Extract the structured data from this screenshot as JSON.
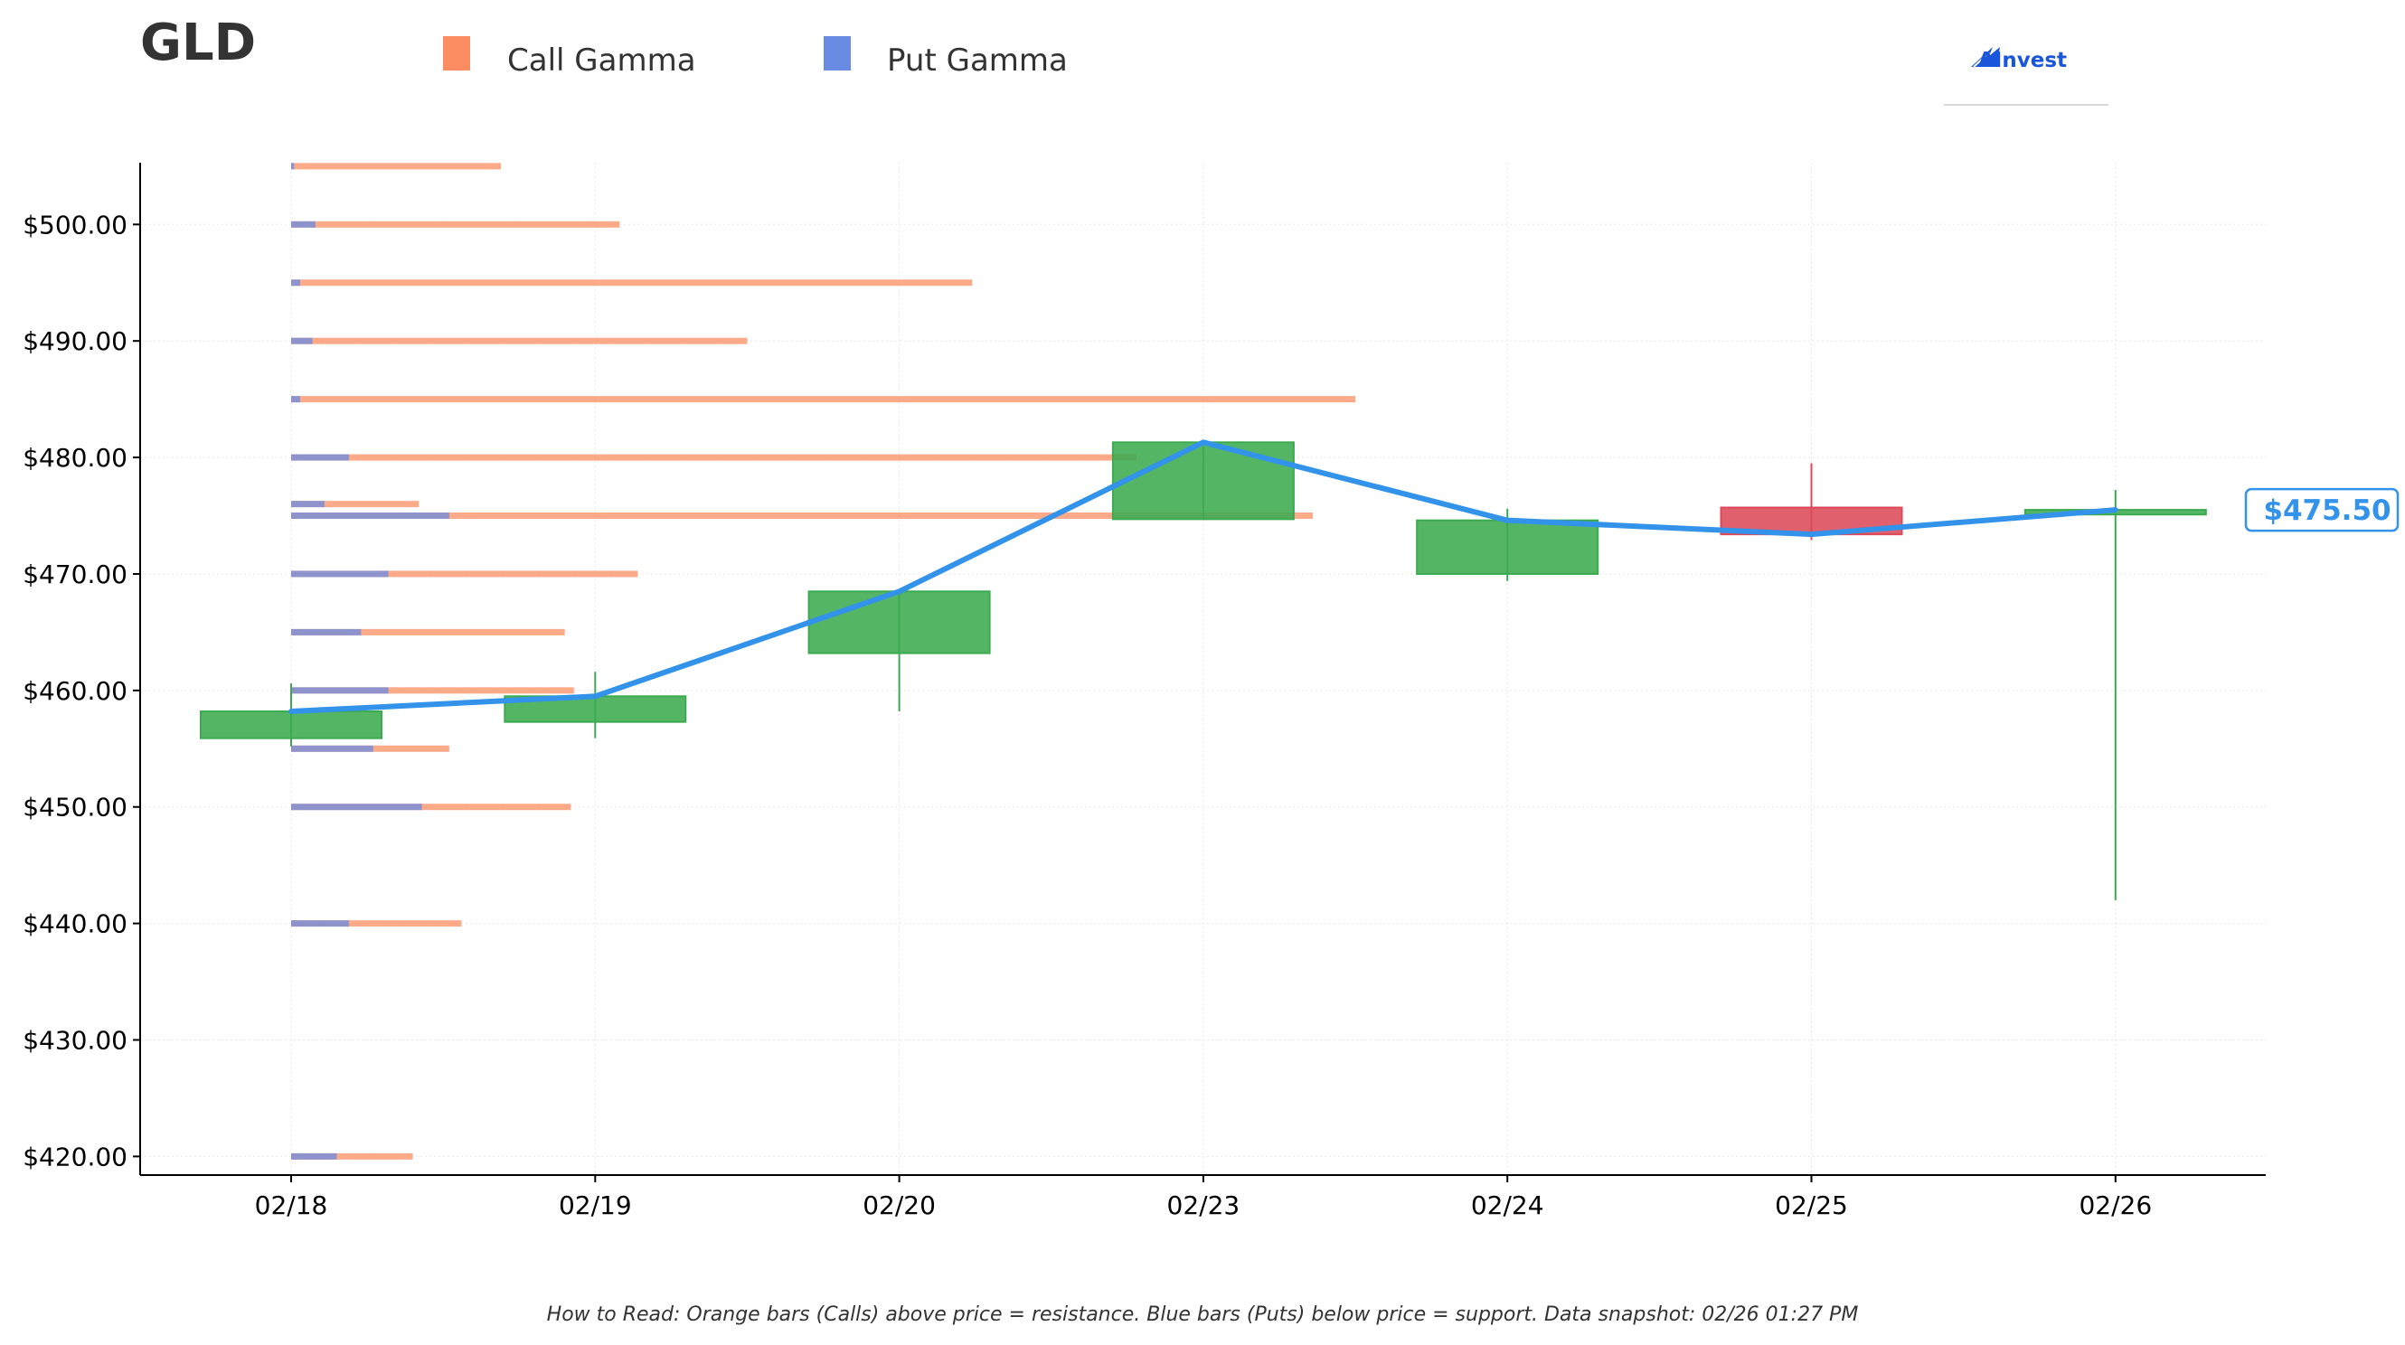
{
  "header": {
    "ticker": "GLD",
    "logo_text": "AInvest"
  },
  "legend": {
    "items": [
      {
        "label": "Call Gamma",
        "color": "#fc8d62"
      },
      {
        "label": "Put Gamma",
        "color": "#6a8be3"
      }
    ]
  },
  "footer": {
    "note": "How to Read: Orange bars (Calls) above price = resistance. Blue bars (Puts) below price = support. Data snapshot: 02/26 01:27 PM"
  },
  "colors": {
    "call": "#fc8d62",
    "put": "#6a8be3",
    "up_candle": "#3cab50",
    "down_candle": "#dc4a5a",
    "price_line": "#3393ea",
    "axis": "#000000",
    "grid": "#e8e8e8"
  },
  "chart_data": {
    "type": "candlestick",
    "title": "GLD",
    "categories": [
      "02/18",
      "02/19",
      "02/20",
      "02/23",
      "02/24",
      "02/25",
      "02/26"
    ],
    "ylim": [
      418.4,
      505.3
    ],
    "y_ticks": [
      420,
      430,
      440,
      450,
      460,
      470,
      480,
      490,
      500
    ],
    "y_tick_labels": [
      "$420.00",
      "$430.00",
      "$440.00",
      "$450.00",
      "$460.00",
      "$470.00",
      "$480.00",
      "$490.00",
      "$500.00"
    ],
    "grid": true,
    "legend_position": "top",
    "candles": [
      {
        "date": "02/18",
        "open": 455.9,
        "high": 460.6,
        "low": 455.2,
        "close": 458.2
      },
      {
        "date": "02/19",
        "open": 457.3,
        "high": 461.6,
        "low": 455.9,
        "close": 459.5
      },
      {
        "date": "02/20",
        "open": 463.2,
        "high": 468.5,
        "low": 458.2,
        "close": 468.5
      },
      {
        "date": "02/23",
        "open": 474.7,
        "high": 481.3,
        "low": 474.7,
        "close": 481.3
      },
      {
        "date": "02/24",
        "open": 470.0,
        "high": 475.6,
        "low": 469.4,
        "close": 474.6
      },
      {
        "date": "02/25",
        "open": 475.7,
        "high": 479.5,
        "low": 472.9,
        "close": 473.4
      },
      {
        "date": "02/26",
        "open": 475.1,
        "high": 477.2,
        "low": 442.0,
        "close": 475.5
      }
    ],
    "gamma_x_unit": "category_index",
    "gamma_levels": [
      {
        "strike": 505,
        "put": 0.01,
        "call": 0.69
      },
      {
        "strike": 500,
        "put": 0.08,
        "call": 1.08
      },
      {
        "strike": 495,
        "put": 0.03,
        "call": 2.24
      },
      {
        "strike": 490,
        "put": 0.07,
        "call": 1.5
      },
      {
        "strike": 485,
        "put": 0.03,
        "call": 3.5
      },
      {
        "strike": 480,
        "put": 0.19,
        "call": 2.78
      },
      {
        "strike": 476,
        "put": 0.11,
        "call": 0.42
      },
      {
        "strike": 475,
        "put": 0.52,
        "call": 3.36
      },
      {
        "strike": 470,
        "put": 0.32,
        "call": 1.14
      },
      {
        "strike": 465,
        "put": 0.23,
        "call": 0.9
      },
      {
        "strike": 460,
        "put": 0.32,
        "call": 0.93
      },
      {
        "strike": 455,
        "put": 0.27,
        "call": 0.52
      },
      {
        "strike": 450,
        "put": 0.43,
        "call": 0.92
      },
      {
        "strike": 440,
        "put": 0.19,
        "call": 0.56
      },
      {
        "strike": 420,
        "put": 0.15,
        "call": 0.4
      }
    ],
    "price_line": [
      458.2,
      459.5,
      468.5,
      481.3,
      474.6,
      473.4,
      475.5
    ],
    "current_price": 475.5,
    "current_price_label": "$475.50"
  }
}
